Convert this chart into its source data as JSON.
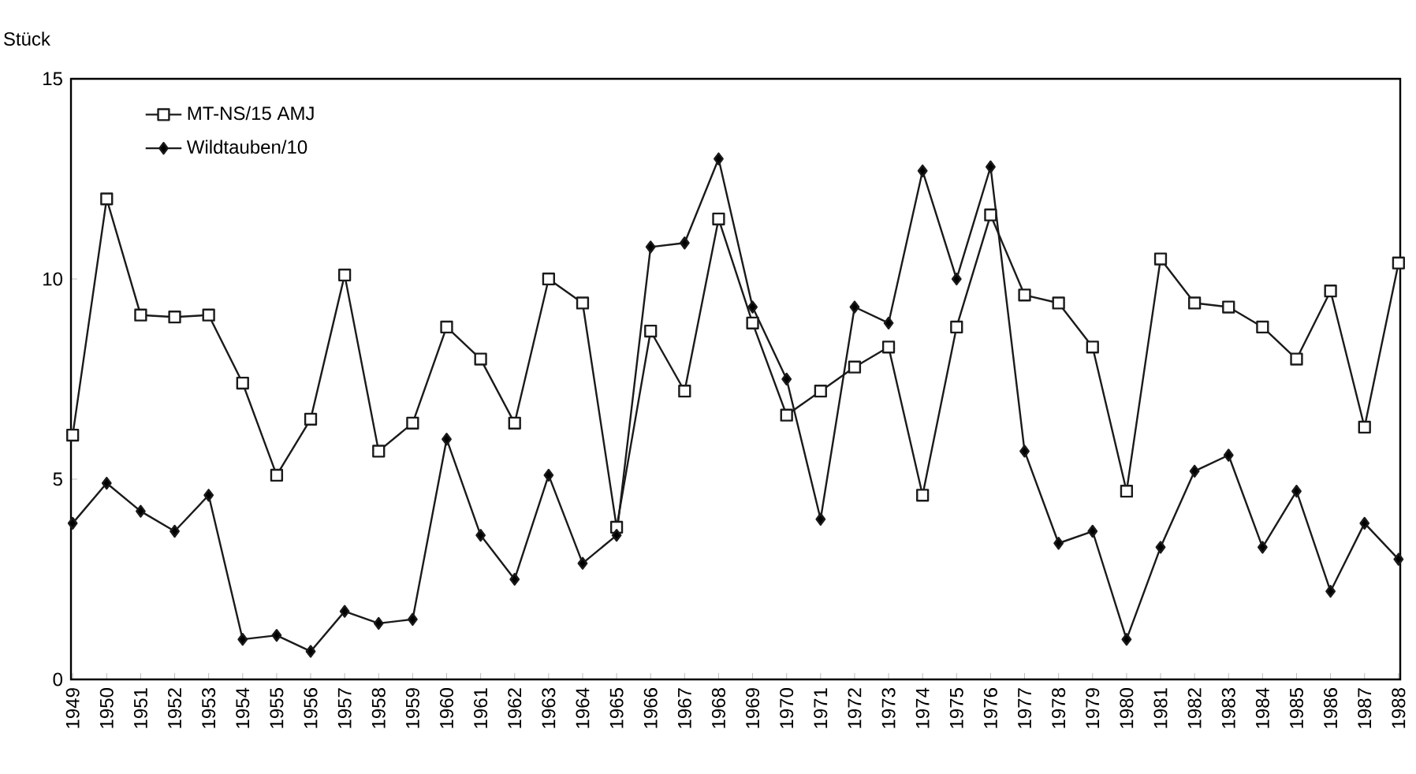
{
  "chart_data": {
    "type": "line",
    "ylabel": "Stück",
    "categories": [
      "1949",
      "1950",
      "1951",
      "1952",
      "1953",
      "1954",
      "1955",
      "1956",
      "1957",
      "1958",
      "1959",
      "1960",
      "1961",
      "1962",
      "1963",
      "1964",
      "1965",
      "1966",
      "1967",
      "1968",
      "1969",
      "1970",
      "1971",
      "1972",
      "1973",
      "1974",
      "1975",
      "1976",
      "1977",
      "1978",
      "1979",
      "1980",
      "1981",
      "1982",
      "1983",
      "1984",
      "1985",
      "1986",
      "1987",
      "1988"
    ],
    "series": [
      {
        "name": "MT-NS/15 AMJ",
        "color": "#1a1a1a",
        "marker": "square",
        "values": [
          6.1,
          12.0,
          9.1,
          9.05,
          9.1,
          7.4,
          5.1,
          6.5,
          10.1,
          5.7,
          6.4,
          8.8,
          8.0,
          6.4,
          10.0,
          9.4,
          3.8,
          8.7,
          7.2,
          11.5,
          8.9,
          6.6,
          7.2,
          7.8,
          8.3,
          4.6,
          8.8,
          11.6,
          9.6,
          9.4,
          8.3,
          4.7,
          10.5,
          9.4,
          9.3,
          8.8,
          8.0,
          9.7,
          6.3,
          10.4
        ]
      },
      {
        "name": "Wildtauben/10",
        "color": "#1a1a1a",
        "marker": "diamond",
        "values": [
          3.9,
          4.9,
          4.2,
          3.7,
          4.6,
          1.0,
          1.1,
          0.7,
          1.7,
          1.4,
          1.5,
          6.0,
          3.6,
          2.5,
          5.1,
          2.9,
          3.6,
          10.8,
          10.9,
          13.0,
          9.3,
          7.5,
          4.0,
          9.3,
          8.9,
          12.7,
          10.0,
          12.8,
          5.7,
          3.4,
          3.7,
          1.0,
          3.3,
          5.2,
          5.6,
          3.3,
          4.7,
          2.2,
          3.9,
          3.0
        ]
      }
    ],
    "ylim": [
      0,
      15
    ],
    "yticks": [
      0,
      5,
      10,
      15
    ],
    "legend": "top left",
    "grid": false,
    "line_style": "solid"
  }
}
